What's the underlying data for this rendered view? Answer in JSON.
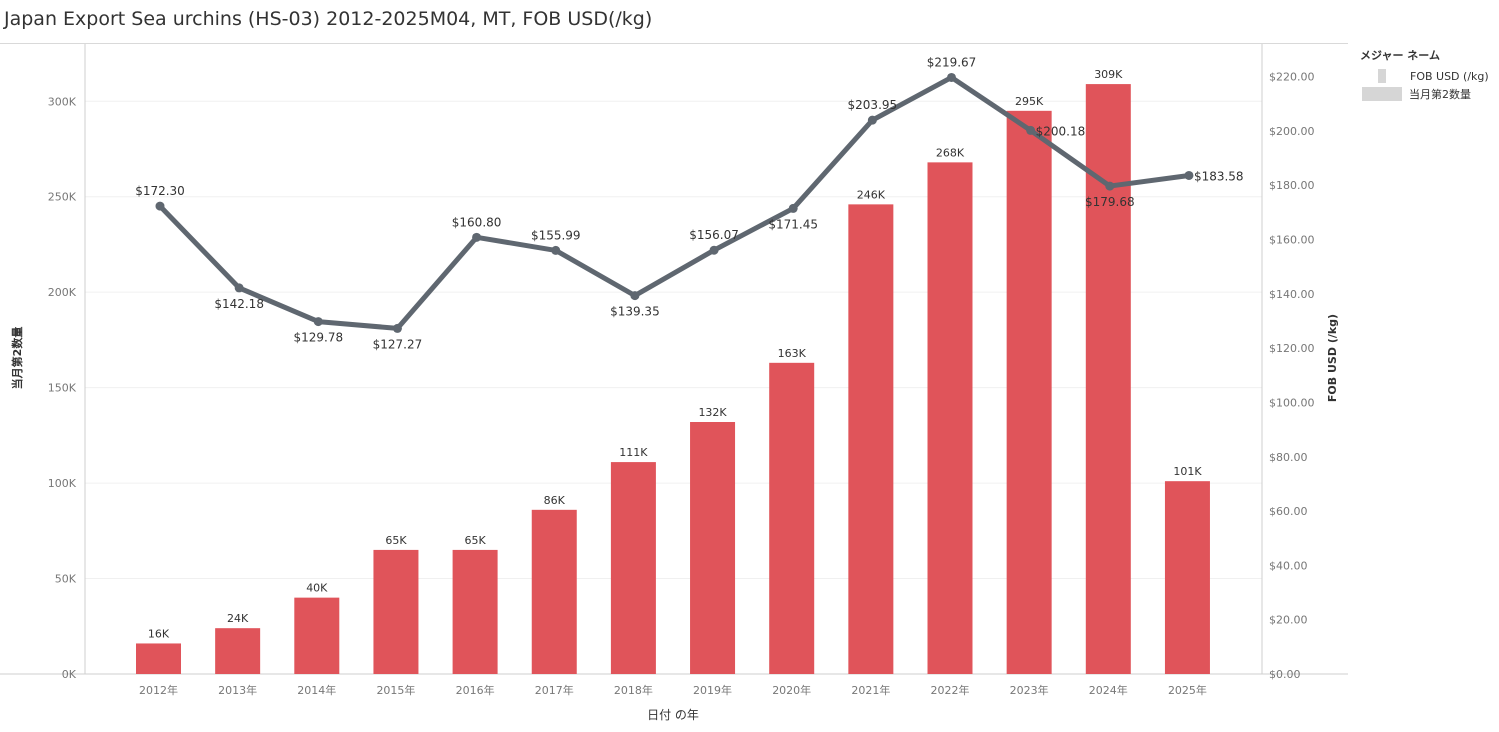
{
  "title": "Japan Export Sea urchins (HS-03) 2012-2025M04, MT, FOB USD(/kg)",
  "legend": {
    "title": "メジャー ネーム",
    "items": [
      {
        "label": "FOB USD (/kg)",
        "kind": "line"
      },
      {
        "label": "当月第2数量",
        "kind": "bar"
      }
    ]
  },
  "chart_data": {
    "type": "bar",
    "categories": [
      "2012年",
      "2013年",
      "2014年",
      "2015年",
      "2016年",
      "2017年",
      "2018年",
      "2019年",
      "2020年",
      "2021年",
      "2022年",
      "2023年",
      "2024年",
      "2025年"
    ],
    "xlabel": "日付 の年",
    "ylabel": "当月第2数量",
    "y2label": "FOB USD (/kg)",
    "ylim": [
      0,
      330000
    ],
    "y2lim": [
      0,
      232
    ],
    "y_ticks": [
      0,
      50000,
      100000,
      150000,
      200000,
      250000,
      300000
    ],
    "y_tick_labels": [
      "0K",
      "50K",
      "100K",
      "150K",
      "200K",
      "250K",
      "300K"
    ],
    "y2_ticks": [
      0,
      20,
      40,
      60,
      80,
      100,
      120,
      140,
      160,
      180,
      200,
      220
    ],
    "y2_tick_labels": [
      "$0.00",
      "$20.00",
      "$40.00",
      "$60.00",
      "$80.00",
      "$100.00",
      "$120.00",
      "$140.00",
      "$160.00",
      "$180.00",
      "$200.00",
      "$220.00"
    ],
    "grid": true,
    "legend_position": "right",
    "colors": {
      "bar": "#e0545a",
      "line": "#5f6770"
    },
    "series": [
      {
        "type": "bar",
        "axis": "left",
        "values": [
          16000,
          24000,
          40000,
          65000,
          65000,
          86000,
          111000,
          132000,
          163000,
          246000,
          268000,
          295000,
          309000,
          101000
        ],
        "labels": [
          "16K",
          "24K",
          "40K",
          "65K",
          "65K",
          "86K",
          "111K",
          "132K",
          "163K",
          "246K",
          "268K",
          "295K",
          "309K",
          "101K"
        ]
      },
      {
        "type": "line",
        "axis": "right",
        "values": [
          172.3,
          142.18,
          129.78,
          127.27,
          160.8,
          155.99,
          139.35,
          156.07,
          171.45,
          203.95,
          219.67,
          200.18,
          179.68,
          183.58
        ],
        "labels": [
          "$172.30",
          "$142.18",
          "$129.78",
          "$127.27",
          "$160.80",
          "$155.99",
          "$139.35",
          "$156.07",
          "$171.45",
          "$203.95",
          "$219.67",
          "$200.18",
          "$179.68",
          "$183.58"
        ],
        "label_positions": [
          "above",
          "below",
          "below",
          "below",
          "above",
          "above",
          "below",
          "above",
          "below",
          "above",
          "above",
          "right",
          "below",
          "right"
        ]
      }
    ]
  }
}
